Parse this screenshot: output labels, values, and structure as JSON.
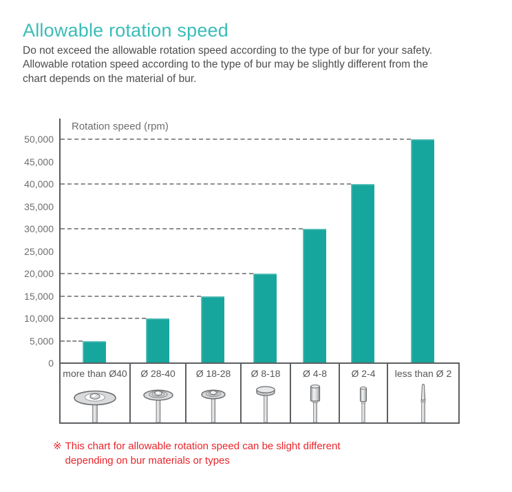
{
  "header": {
    "title": "Allowable rotation speed",
    "title_color": "#3bbcb8",
    "intro_lines": [
      "Do not exceed the allowable rotation speed according to the type of bur for your safety.",
      "Allowable rotation speed according to the type of bur may be slightly different from the",
      "chart depends on the material of bur."
    ]
  },
  "chart_data": {
    "type": "bar",
    "title": "",
    "axis_label": "Rotation speed (rpm)",
    "categories": [
      "more than Ø40",
      "Ø 28-40",
      "Ø 18-28",
      "Ø 8-18",
      "Ø 4-8",
      "Ø 2-4",
      "less than Ø 2"
    ],
    "values": [
      5000,
      10000,
      15000,
      20000,
      30000,
      40000,
      50000
    ],
    "category_icons": [
      "disc-bur-large-icon",
      "disc-bur-medium-icon",
      "disc-bur-small-icon",
      "button-bur-icon",
      "cylinder-bur-icon",
      "cylinder-bur-thin-icon",
      "taper-bur-icon"
    ],
    "y_tick_labels": [
      "50,000",
      "45,000",
      "40,000",
      "35,000",
      "30,000",
      "25,000",
      "20,000",
      "15,000",
      "10,000",
      "5,000",
      "0"
    ],
    "ylim": [
      0,
      50000
    ],
    "grid": "horizontal dashed lines only at bar values, drawn from the y-axis to each bar",
    "legend": "none",
    "bar_color": "#17a69d"
  },
  "footnote": {
    "marker": "※",
    "lines": [
      "This chart for allowable rotation speed can be slight different",
      "depending on bur materials or types"
    ],
    "color": "#e8252b"
  }
}
